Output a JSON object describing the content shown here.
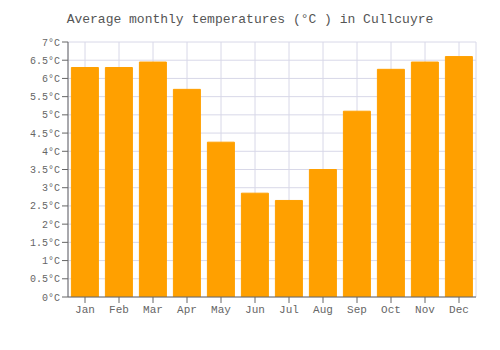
{
  "chart_data": {
    "type": "bar",
    "title": "Average monthly temperatures (°C ) in Cullcuyre",
    "categories": [
      "Jan",
      "Feb",
      "Mar",
      "Apr",
      "May",
      "Jun",
      "Jul",
      "Aug",
      "Sep",
      "Oct",
      "Nov",
      "Dec"
    ],
    "values": [
      6.3,
      6.3,
      6.45,
      5.7,
      4.25,
      2.85,
      2.65,
      3.5,
      5.1,
      6.25,
      6.45,
      6.6
    ],
    "color": "#FFA000",
    "ylim": [
      0,
      7
    ],
    "yticks": [
      {
        "value": 0,
        "label": "0°C"
      },
      {
        "value": 0.5,
        "label": "0.5°C"
      },
      {
        "value": 1,
        "label": "1°C"
      },
      {
        "value": 1.5,
        "label": "1.5°C"
      },
      {
        "value": 2,
        "label": "2°C"
      },
      {
        "value": 2.5,
        "label": "2.5°C"
      },
      {
        "value": 3,
        "label": "3°C"
      },
      {
        "value": 3.5,
        "label": "3.5°C"
      },
      {
        "value": 4,
        "label": "4°C"
      },
      {
        "value": 4.5,
        "label": "4.5°C"
      },
      {
        "value": 5,
        "label": "5°C"
      },
      {
        "value": 5.5,
        "label": "5.5°C"
      },
      {
        "value": 6,
        "label": "6°C"
      },
      {
        "value": 6.5,
        "label": "6.5°C"
      },
      {
        "value": 7,
        "label": "7°C"
      }
    ],
    "grid": true
  }
}
